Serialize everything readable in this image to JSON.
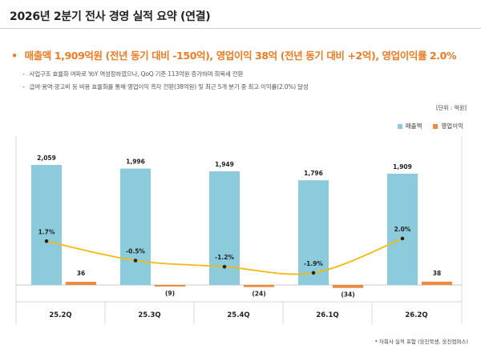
{
  "page": {
    "title": "2026년 2분기 전사 경영 실적 요약 (연결)",
    "headline_bullet": "•",
    "headline": "매출액 1,909억원 (전년 동기 대비 -150억), 영업이익 38억 (전년 동기 대비 +2억), 영업이익률 2.0%",
    "sub_dash": "-",
    "sub_bullets": [
      "사업구조 효율화 여파로 YoY 역성장하였으나, QoQ 기준 113억원 증가하며 회복세 전환",
      "급여·용역·광고비 등 비용 효율화를 통해 영업이익 흑자 전환(38억원) 및 최근 5개 분기 중 최고 이익률(2.0%) 달성"
    ],
    "unit": "[단위 : 억원]",
    "footnote": "* 자회사 실적 포함 (웅진북센, 웅진컴퍼스)"
  },
  "colors": {
    "revenue": "#8ccbdc",
    "op_income": "#ee8a3c",
    "margin_line": "#f5b90f",
    "accent": "#ee7b22"
  },
  "chart_data": {
    "type": "bar",
    "categories": [
      "25.2Q",
      "25.3Q",
      "25.4Q",
      "26.1Q",
      "26.2Q"
    ],
    "series": [
      {
        "name": "매출액",
        "values": [
          2059,
          1996,
          1949,
          1796,
          1909
        ],
        "labels": [
          "2,059",
          "1,996",
          "1,949",
          "1,796",
          "1,909"
        ]
      },
      {
        "name": "영업이익",
        "values": [
          36,
          -9,
          -24,
          -34,
          38
        ],
        "labels": [
          "36",
          "(9)",
          "(24)",
          "(34)",
          "38"
        ]
      }
    ],
    "margin_line": {
      "values": [
        1.7,
        -0.5,
        -1.2,
        -1.9,
        2.0
      ],
      "labels": [
        "1.7%",
        "-0.5%",
        "-1.2%",
        "-1.9%",
        "2.0%"
      ]
    },
    "legend_position": "top-right",
    "grid": false
  }
}
